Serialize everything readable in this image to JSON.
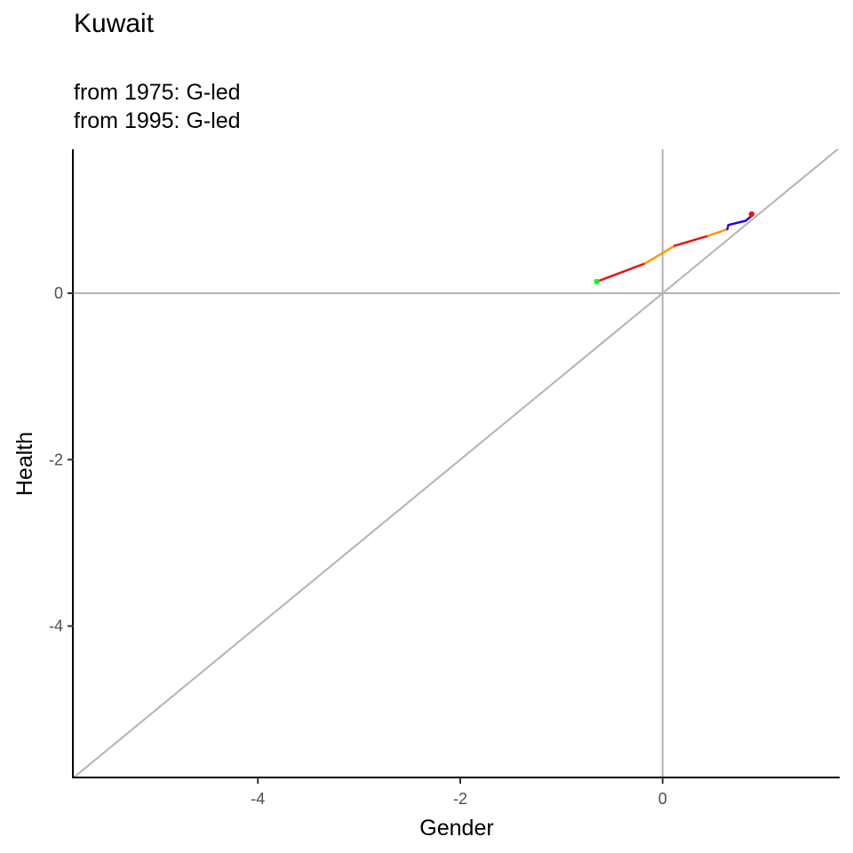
{
  "chart_data": {
    "type": "line",
    "title": "Kuwait",
    "subtitle_lines": [
      "from 1975:  G-led",
      "from 1995:  G-led"
    ],
    "xlabel": "Gender",
    "ylabel": "Health",
    "xlim": [
      -5.82,
      1.75
    ],
    "ylim": [
      -5.82,
      1.73
    ],
    "xticks": [
      -4,
      -2,
      0
    ],
    "yticks": [
      0,
      -2,
      -4
    ],
    "reference_lines": {
      "vertical": 0,
      "horizontal": 0,
      "diagonal": "y = x"
    },
    "grid": false,
    "series": [
      {
        "color": "#ee1111",
        "points": [
          [
            -0.65,
            0.14
          ],
          [
            -0.17,
            0.36
          ]
        ]
      },
      {
        "color": "#ff9900",
        "points": [
          [
            -0.17,
            0.36
          ],
          [
            0.12,
            0.57
          ]
        ]
      },
      {
        "color": "#ee1111",
        "points": [
          [
            0.12,
            0.57
          ],
          [
            0.45,
            0.69
          ]
        ]
      },
      {
        "color": "#ff9900",
        "points": [
          [
            0.45,
            0.69
          ],
          [
            0.64,
            0.77
          ]
        ]
      },
      {
        "color": "#2200ee",
        "points": [
          [
            0.64,
            0.77
          ],
          [
            0.65,
            0.82
          ],
          [
            0.82,
            0.87
          ],
          [
            0.87,
            0.92
          ]
        ]
      }
    ],
    "markers": [
      {
        "x": -0.65,
        "y": 0.14,
        "color": "#22ee22"
      },
      {
        "x": 0.88,
        "y": 0.95,
        "color": "#ee1111"
      }
    ]
  },
  "colors": {
    "reference": "#b3b3b3",
    "axis": "#000000"
  }
}
